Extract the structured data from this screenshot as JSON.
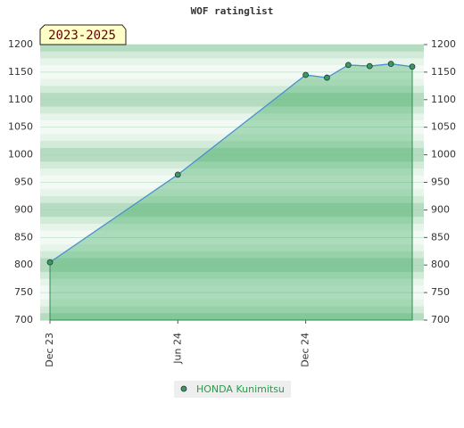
{
  "chart_data": {
    "type": "line",
    "title": "WOF ratinglist",
    "annotation": "2023-2025",
    "x": [
      "2023-12",
      "2024-06",
      "2024-12",
      "2025-01",
      "2025-02",
      "2025-03",
      "2025-04",
      "2025-05"
    ],
    "series": [
      {
        "name": "HONDA Kunimitsu",
        "color": "#4a90d9",
        "marker_color": "#3a9a5a",
        "values": [
          805,
          964,
          1145,
          1140,
          1163,
          1161,
          1165,
          1160
        ]
      }
    ],
    "xlim": [
      "2023-12",
      "2025-05"
    ],
    "xticks": [
      {
        "value": "2023-12",
        "label": "Dec 23"
      },
      {
        "value": "2024-06",
        "label": "Jun 24"
      },
      {
        "value": "2024-12",
        "label": "Dec 24"
      }
    ],
    "ylim": [
      700,
      1200
    ],
    "yticks": [
      700,
      750,
      800,
      850,
      900,
      950,
      1000,
      1050,
      1100,
      1150,
      1200
    ],
    "grid": true
  }
}
